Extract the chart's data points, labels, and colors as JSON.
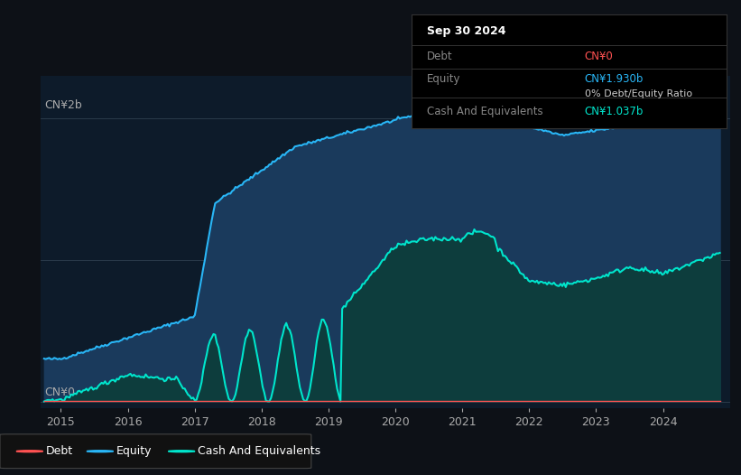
{
  "bg_color": "#0d1117",
  "plot_bg_color": "#0d1b2a",
  "ylabel_top": "CN¥2b",
  "ylabel_bottom": "CN¥0",
  "equity_color": "#29b6f6",
  "cash_color": "#00e5cc",
  "debt_color": "#ff5252",
  "equity_fill_color": "#1a3a5c",
  "cash_fill_color": "#0d3d3d",
  "tooltip_title": "Sep 30 2024",
  "tooltip_debt_label": "Debt",
  "tooltip_debt_value": "CN¥0",
  "tooltip_equity_label": "Equity",
  "tooltip_equity_value": "CN¥1.930b",
  "tooltip_ratio": "0% Debt/Equity Ratio",
  "tooltip_cash_label": "Cash And Equivalents",
  "tooltip_cash_value": "CN¥1.037b",
  "legend_debt": "Debt",
  "legend_equity": "Equity",
  "legend_cash": "Cash And Equivalents",
  "xlim_start": 2014.7,
  "xlim_end": 2025.0,
  "ylim_bottom": -0.05,
  "ylim_top": 2.3
}
